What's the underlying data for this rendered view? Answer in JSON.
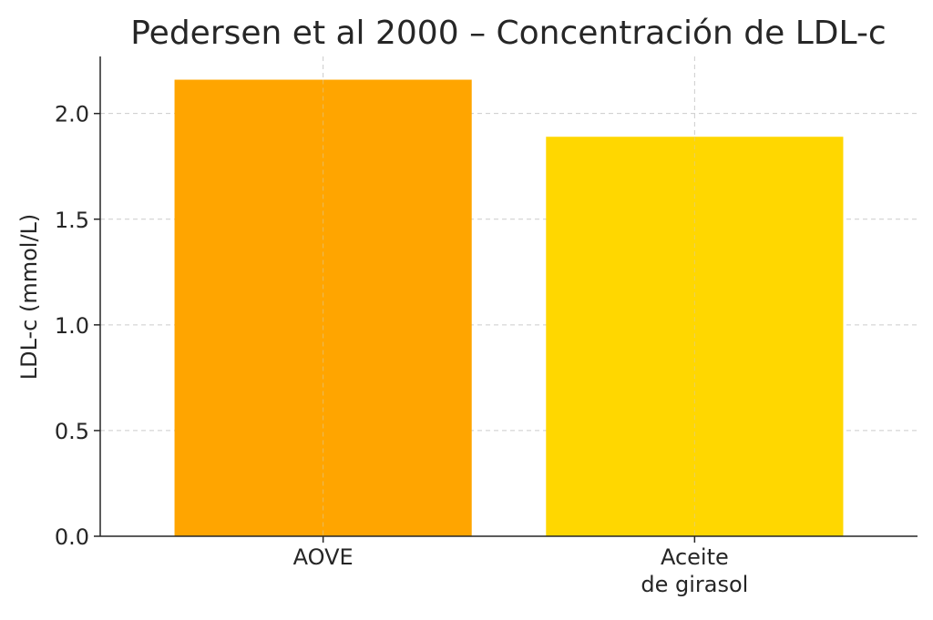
{
  "chart_data": {
    "type": "bar",
    "title": "Pedersen et al 2000 – Concentración de LDL-c",
    "xlabel": "",
    "ylabel": "LDL-c (mmol/L)",
    "categories": [
      [
        "AOVE"
      ],
      [
        "Aceite",
        "de girasol"
      ]
    ],
    "values": [
      2.16,
      1.89
    ],
    "colors": [
      "#FFA500",
      "#FFD700"
    ],
    "ylim": [
      0,
      2.27
    ],
    "yticks": [
      "0.0",
      "0.5",
      "1.0",
      "1.5",
      "2.0"
    ],
    "ytick_values": [
      0,
      0.5,
      1.0,
      1.5,
      2.0
    ],
    "grid": true
  }
}
